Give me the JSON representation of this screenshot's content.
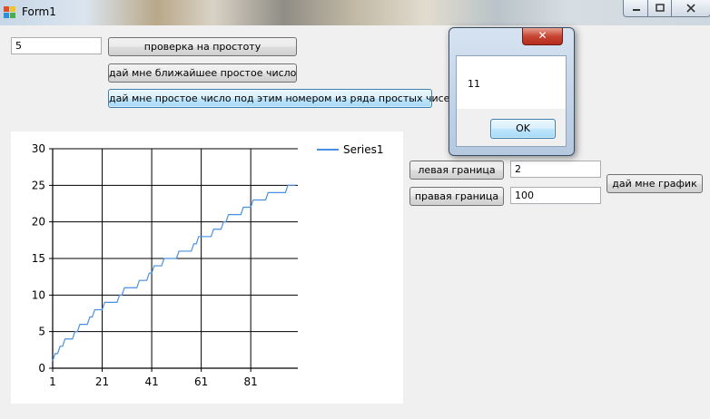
{
  "window": {
    "title": "Form1",
    "minimize_icon": "minimize-icon",
    "maximize_icon": "maximize-icon",
    "close_icon": "close-icon"
  },
  "main": {
    "number_input_value": "5",
    "primality_button": "проверка на простоту",
    "nearest_prime_button": "дай мне ближайшее простое число",
    "nth_prime_button": "дай мне простое число под этим номером из ряда простых чисел",
    "left_bound_button": "левая граница",
    "left_bound_value": "2",
    "right_bound_button": "правая граница",
    "right_bound_value": "100",
    "plot_button": "дай мне график"
  },
  "message_box": {
    "text": "11",
    "ok_button": "OK",
    "close_glyph": "✕"
  },
  "chart_data": {
    "type": "line",
    "title": "",
    "xlabel": "",
    "ylabel": "",
    "xlim": [
      1,
      100
    ],
    "ylim": [
      0,
      30
    ],
    "x_ticks": [
      "1",
      "21",
      "41",
      "61",
      "81"
    ],
    "y_ticks": [
      "0",
      "5",
      "10",
      "15",
      "20",
      "25",
      "30"
    ],
    "grid": true,
    "legend_position": "top-right",
    "series": [
      {
        "name": "Series1",
        "color": "#4a90e2",
        "x": [
          1,
          2,
          3,
          4,
          5,
          6,
          7,
          8,
          9,
          10,
          11,
          12,
          13,
          14,
          15,
          16,
          17,
          18,
          19,
          20,
          21,
          22,
          23,
          24,
          25,
          26,
          27,
          28,
          29,
          30,
          31,
          32,
          33,
          34,
          35,
          36,
          37,
          38,
          39,
          40,
          41,
          42,
          43,
          44,
          45,
          46,
          47,
          48,
          49,
          50,
          51,
          52,
          53,
          54,
          55,
          56,
          57,
          58,
          59,
          60,
          61,
          62,
          63,
          64,
          65,
          66,
          67,
          68,
          69,
          70,
          71,
          72,
          73,
          74,
          75,
          76,
          77,
          78,
          79,
          80,
          81,
          82,
          83,
          84,
          85,
          86,
          87,
          88,
          89,
          90,
          91,
          92,
          93,
          94,
          95,
          96,
          97,
          98,
          99
        ],
        "y": [
          1,
          2,
          2,
          3,
          3,
          4,
          4,
          4,
          4,
          5,
          5,
          6,
          6,
          6,
          6,
          7,
          7,
          8,
          8,
          8,
          8,
          9,
          9,
          9,
          9,
          9,
          9,
          10,
          10,
          11,
          11,
          11,
          11,
          11,
          11,
          12,
          12,
          12,
          12,
          13,
          13,
          14,
          14,
          14,
          14,
          15,
          15,
          15,
          15,
          15,
          15,
          16,
          16,
          16,
          16,
          16,
          16,
          17,
          17,
          18,
          18,
          18,
          18,
          18,
          18,
          19,
          19,
          19,
          19,
          20,
          20,
          21,
          21,
          21,
          21,
          21,
          21,
          22,
          22,
          22,
          22,
          23,
          23,
          23,
          23,
          23,
          23,
          24,
          24,
          24,
          24,
          24,
          24,
          24,
          24,
          25,
          25,
          25,
          25
        ]
      }
    ]
  }
}
